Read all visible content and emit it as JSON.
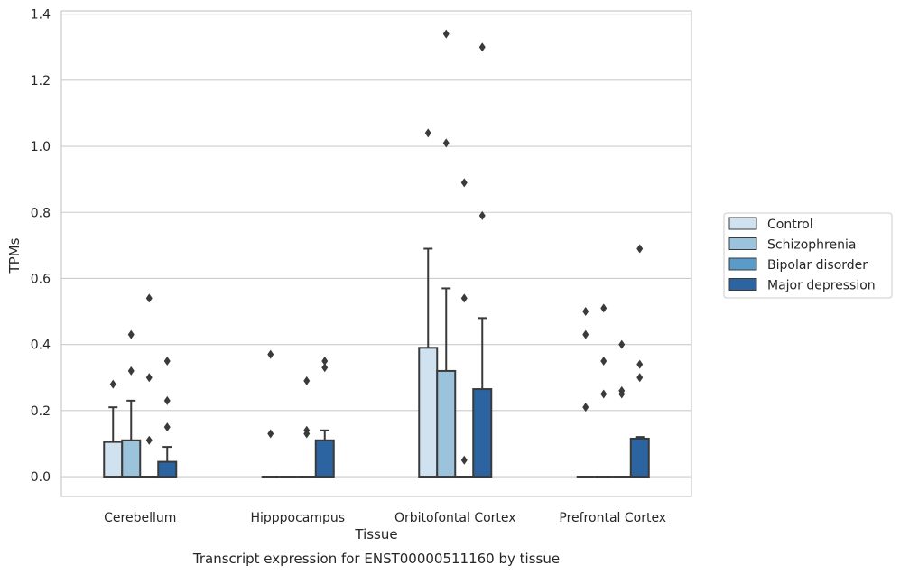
{
  "caption": "Transcript expression for ENST00000511160 by tissue",
  "chart_data": {
    "type": "bar",
    "title": "",
    "xlabel": "Tissue",
    "ylabel": "TPMs",
    "ylim": [
      -0.06,
      1.41
    ],
    "yticks": [
      "0.0",
      "0.2",
      "0.4",
      "0.6",
      "0.8",
      "1.0",
      "1.2",
      "1.4"
    ],
    "grid": "horizontal",
    "legend_position": "right",
    "categories": [
      "Cerebellum",
      "Hipppocampus",
      "Orbitofontal Cortex",
      "Prefrontal Cortex"
    ],
    "series": [
      {
        "name": "Control",
        "color": "#d0e1f0",
        "values": [
          0.105,
          0.0,
          0.39,
          0.0
        ],
        "error_top": [
          0.21,
          null,
          0.69,
          null
        ],
        "outliers": [
          [
            0.28
          ],
          [
            0.37,
            0.13
          ],
          [
            1.04
          ],
          [
            0.5,
            0.43,
            0.21
          ]
        ]
      },
      {
        "name": "Schizophrenia",
        "color": "#9cc3dc",
        "values": [
          0.11,
          0.0,
          0.32,
          0.0
        ],
        "error_top": [
          0.23,
          null,
          0.57,
          null
        ],
        "outliers": [
          [
            0.43,
            0.32
          ],
          [],
          [
            1.34,
            1.01
          ],
          [
            0.51,
            0.35,
            0.25
          ]
        ]
      },
      {
        "name": "Bipolar disorder",
        "color": "#5a9bc9",
        "values": [
          0.0,
          0.0,
          0.0,
          0.0
        ],
        "error_top": [
          null,
          null,
          null,
          null
        ],
        "outliers": [
          [
            0.54,
            0.3,
            0.11
          ],
          [
            0.29,
            0.14,
            0.13
          ],
          [
            0.89,
            0.54,
            0.05
          ],
          [
            0.4,
            0.26,
            0.25
          ]
        ]
      },
      {
        "name": "Major depression",
        "color": "#2b64a0",
        "values": [
          0.045,
          0.11,
          0.265,
          0.115
        ],
        "error_top": [
          0.09,
          0.14,
          0.48,
          0.12
        ],
        "outliers": [
          [
            0.35,
            0.23,
            0.15
          ],
          [
            0.35,
            0.33
          ],
          [
            1.3,
            0.79
          ],
          [
            0.69,
            0.34,
            0.3
          ]
        ]
      }
    ]
  }
}
